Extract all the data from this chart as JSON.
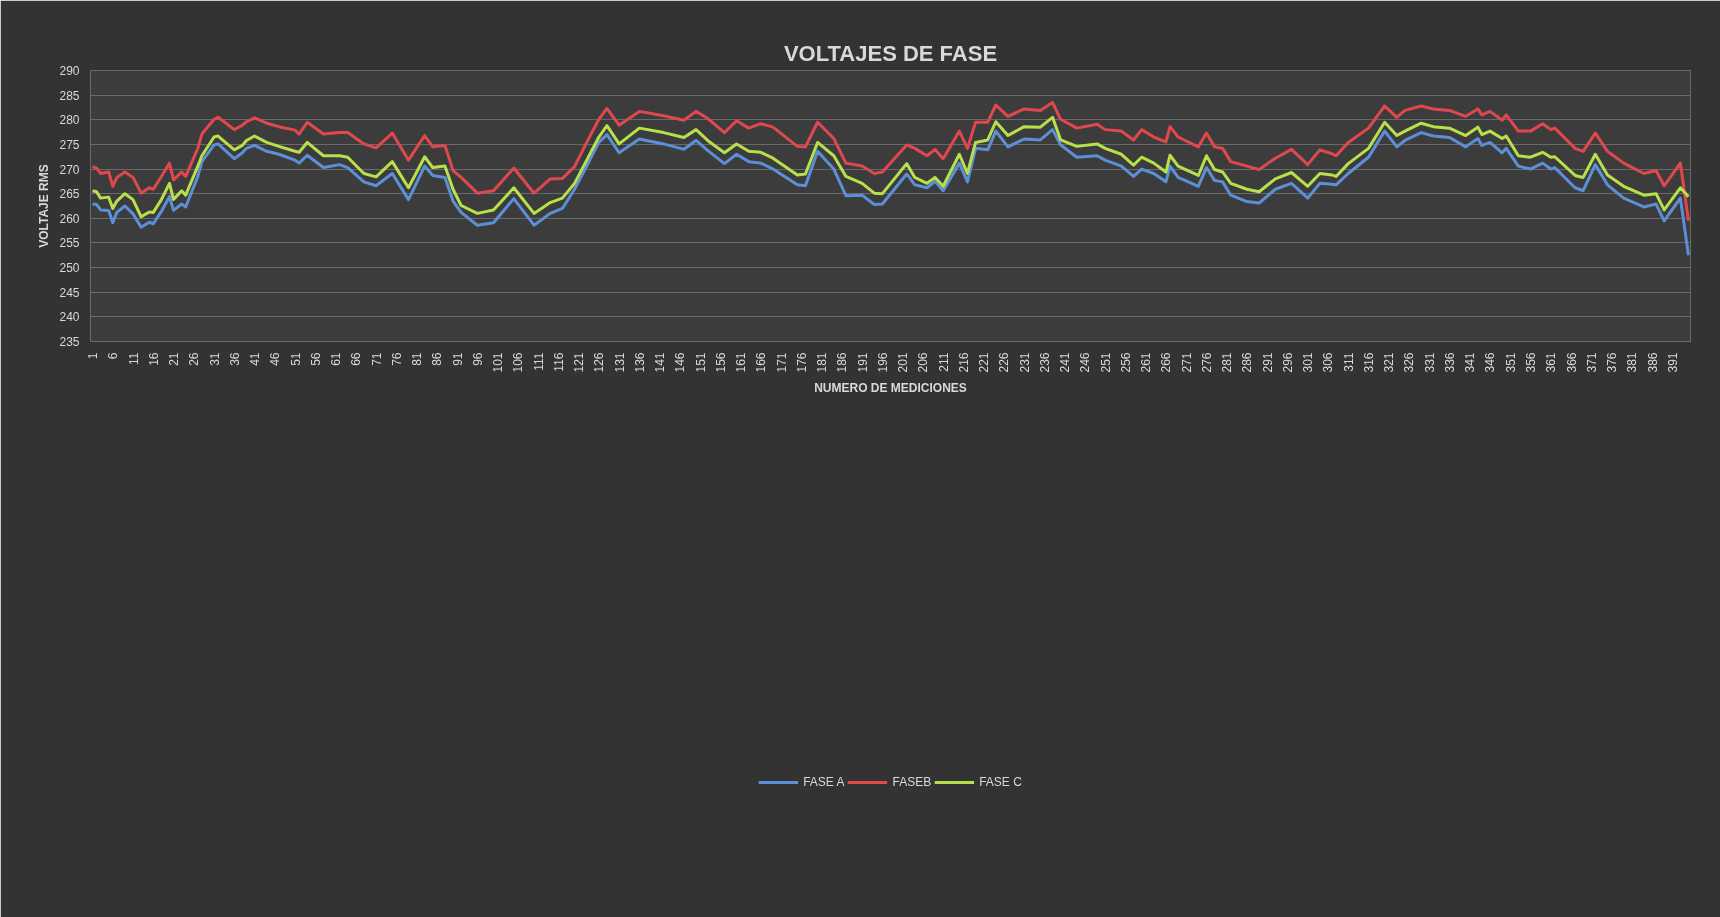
{
  "chart_data": {
    "type": "line",
    "title": "VOLTAJES DE FASE",
    "xlabel": "NUMERO DE MEDICIONES",
    "ylabel": "VOLTAJE RMS",
    "x": [
      1,
      2,
      3,
      5,
      6,
      7,
      9,
      11,
      13,
      15,
      16,
      18,
      20,
      21,
      23,
      24,
      27,
      28,
      31,
      32,
      36,
      38,
      39,
      41,
      44,
      47,
      51,
      52,
      54,
      58,
      62,
      64,
      68,
      71,
      75,
      79,
      83,
      85,
      88,
      90,
      92,
      96,
      100,
      105,
      110,
      114,
      117,
      120,
      123,
      126,
      128,
      131,
      136,
      142,
      147,
      150,
      153,
      157,
      160,
      163,
      166,
      169,
      175,
      177,
      180,
      184,
      187,
      191,
      194,
      196,
      202,
      204,
      207,
      209,
      211,
      215,
      217,
      219,
      222,
      224,
      227,
      231,
      235,
      238,
      240,
      244,
      249,
      251,
      255,
      258,
      260,
      263,
      266,
      267,
      269,
      274,
      276,
      278,
      280,
      282,
      286,
      289,
      293,
      297,
      301,
      304,
      307,
      308,
      311,
      316,
      320,
      323,
      325,
      329,
      332,
      336,
      340,
      343,
      344,
      346,
      349,
      350,
      353,
      356,
      359,
      361,
      362,
      367,
      369,
      372,
      375,
      379,
      384,
      387,
      389,
      393,
      395
    ],
    "series": [
      {
        "name": "FASE A",
        "color": "#5b8fd6",
        "values": [
          262.9,
          262.8,
          261.7,
          261.6,
          259.1,
          261.2,
          262.5,
          260.9,
          258.2,
          259.2,
          258.9,
          261.4,
          264.4,
          261.6,
          262.9,
          262.3,
          268.5,
          271.5,
          274.9,
          275.1,
          272.1,
          273.3,
          274.2,
          274.8,
          273.6,
          273.0,
          271.8,
          271.2,
          272.8,
          270.3,
          270.9,
          270.3,
          267.4,
          266.6,
          269.1,
          263.8,
          270.6,
          268.7,
          268.3,
          263.5,
          261.2,
          258.6,
          259.1,
          264.0,
          258.6,
          261.0,
          262.0,
          265.9,
          270.6,
          275.4,
          277.0,
          273.3,
          276.1,
          275.1,
          274.0,
          275.8,
          273.7,
          271.1,
          273.0,
          271.5,
          271.2,
          270.0,
          266.8,
          266.6,
          273.6,
          270.0,
          264.6,
          264.7,
          262.8,
          262.9,
          269.0,
          266.8,
          266.2,
          267.5,
          265.6,
          271.2,
          267.4,
          274.2,
          273.9,
          277.7,
          274.5,
          276.1,
          275.9,
          278.0,
          274.9,
          272.4,
          272.7,
          271.8,
          270.6,
          268.5,
          270.0,
          269.1,
          267.4,
          270.6,
          268.3,
          266.5,
          270.3,
          267.7,
          267.4,
          264.7,
          263.4,
          263.1,
          265.9,
          267.1,
          264.1,
          267.1,
          266.9,
          266.8,
          269.1,
          272.4,
          277.7,
          274.5,
          275.8,
          277.4,
          276.7,
          276.4,
          274.5,
          276.2,
          274.8,
          275.4,
          273.3,
          274.2,
          270.6,
          270.0,
          271.2,
          270.0,
          270.3,
          266.2,
          265.6,
          270.9,
          266.8,
          264.1,
          262.3,
          262.9,
          259.5,
          264.1,
          252.5
        ]
      },
      {
        "name": "FASEB",
        "color": "#e0484e",
        "values": [
          270.5,
          270.2,
          269.1,
          269.4,
          266.5,
          268.3,
          269.4,
          268.3,
          265.1,
          266.2,
          265.9,
          268.5,
          271.2,
          267.8,
          269.4,
          268.5,
          274.2,
          277.1,
          280.1,
          280.5,
          278.0,
          278.9,
          279.6,
          280.4,
          279.3,
          278.6,
          277.9,
          277.1,
          279.5,
          277.1,
          277.4,
          277.4,
          275.1,
          274.3,
          277.3,
          271.8,
          276.8,
          274.5,
          274.8,
          269.7,
          268.3,
          265.1,
          265.6,
          270.2,
          265.1,
          268.0,
          268.1,
          270.5,
          275.4,
          280.1,
          282.3,
          278.9,
          281.7,
          280.8,
          279.9,
          281.7,
          280.2,
          277.4,
          279.8,
          278.3,
          279.2,
          278.5,
          274.6,
          274.5,
          279.5,
          276.2,
          271.2,
          270.6,
          269.1,
          269.4,
          274.9,
          274.2,
          272.7,
          274.0,
          272.1,
          277.7,
          274.2,
          279.5,
          279.5,
          283.0,
          280.7,
          282.2,
          281.9,
          283.5,
          280.1,
          278.3,
          279.1,
          278.0,
          277.7,
          275.9,
          278.0,
          276.5,
          275.5,
          278.6,
          276.5,
          274.5,
          277.3,
          274.5,
          274.2,
          271.5,
          270.6,
          269.9,
          272.2,
          274.0,
          270.9,
          273.9,
          273.1,
          272.7,
          275.4,
          278.3,
          282.8,
          280.5,
          281.9,
          282.8,
          282.2,
          281.9,
          280.7,
          282.2,
          281.0,
          281.7,
          279.9,
          281.0,
          277.7,
          277.7,
          279.2,
          278.0,
          278.3,
          274.2,
          273.6,
          277.3,
          273.6,
          271.2,
          269.1,
          269.7,
          266.6,
          271.2,
          259.5
        ]
      },
      {
        "name": "FASE C",
        "color": "#b8e04a",
        "values": [
          265.6,
          265.4,
          264.1,
          264.3,
          262.0,
          263.5,
          265.0,
          263.8,
          260.3,
          261.3,
          261.2,
          263.8,
          267.1,
          263.8,
          265.6,
          264.7,
          270.6,
          272.7,
          276.5,
          276.7,
          273.9,
          274.8,
          275.8,
          276.7,
          275.4,
          274.6,
          273.6,
          273.4,
          275.4,
          272.7,
          272.7,
          272.4,
          269.1,
          268.4,
          271.5,
          266.2,
          272.5,
          270.3,
          270.6,
          265.9,
          262.6,
          261.0,
          261.7,
          266.2,
          261.0,
          263.2,
          264.1,
          267.1,
          271.8,
          276.5,
          278.8,
          275.1,
          278.3,
          277.4,
          276.4,
          278.0,
          275.7,
          273.3,
          275.1,
          273.6,
          273.4,
          272.2,
          268.8,
          269.0,
          275.4,
          272.7,
          268.5,
          267.1,
          265.1,
          265.0,
          271.1,
          268.3,
          267.1,
          268.3,
          266.5,
          273.0,
          269.1,
          275.4,
          275.9,
          279.6,
          276.8,
          278.6,
          278.5,
          280.5,
          275.9,
          274.6,
          275.1,
          274.2,
          273.0,
          270.8,
          272.4,
          271.2,
          269.4,
          272.8,
          270.6,
          268.7,
          272.7,
          269.9,
          269.4,
          267.1,
          265.9,
          265.4,
          268.0,
          269.3,
          266.5,
          269.1,
          268.8,
          268.5,
          271.1,
          274.2,
          279.5,
          276.8,
          277.7,
          279.3,
          278.6,
          278.3,
          276.8,
          278.5,
          277.0,
          277.7,
          276.2,
          276.7,
          272.7,
          272.4,
          273.4,
          272.4,
          272.5,
          268.7,
          268.3,
          273.0,
          268.8,
          266.5,
          264.7,
          265.0,
          261.7,
          266.2,
          264.4
        ]
      }
    ],
    "xlim": [
      0.5,
      395.5
    ],
    "xticks": [
      1,
      6,
      11,
      16,
      21,
      26,
      31,
      36,
      41,
      46,
      51,
      56,
      61,
      66,
      71,
      76,
      81,
      86,
      91,
      96,
      101,
      106,
      111,
      116,
      121,
      126,
      131,
      136,
      141,
      146,
      151,
      156,
      161,
      166,
      171,
      176,
      181,
      186,
      191,
      196,
      201,
      206,
      211,
      216,
      221,
      226,
      231,
      236,
      241,
      246,
      251,
      256,
      261,
      266,
      271,
      276,
      281,
      286,
      291,
      296,
      301,
      306,
      311,
      316,
      321,
      326,
      331,
      336,
      341,
      346,
      351,
      356,
      361,
      366,
      371,
      376,
      381,
      386,
      391
    ],
    "ylim": [
      235,
      290
    ],
    "yticks": [
      235,
      240,
      245,
      250,
      255,
      260,
      265,
      270,
      275,
      280,
      285,
      290
    ],
    "grid": "y",
    "legend": "bottom",
    "line_style": "solid"
  }
}
